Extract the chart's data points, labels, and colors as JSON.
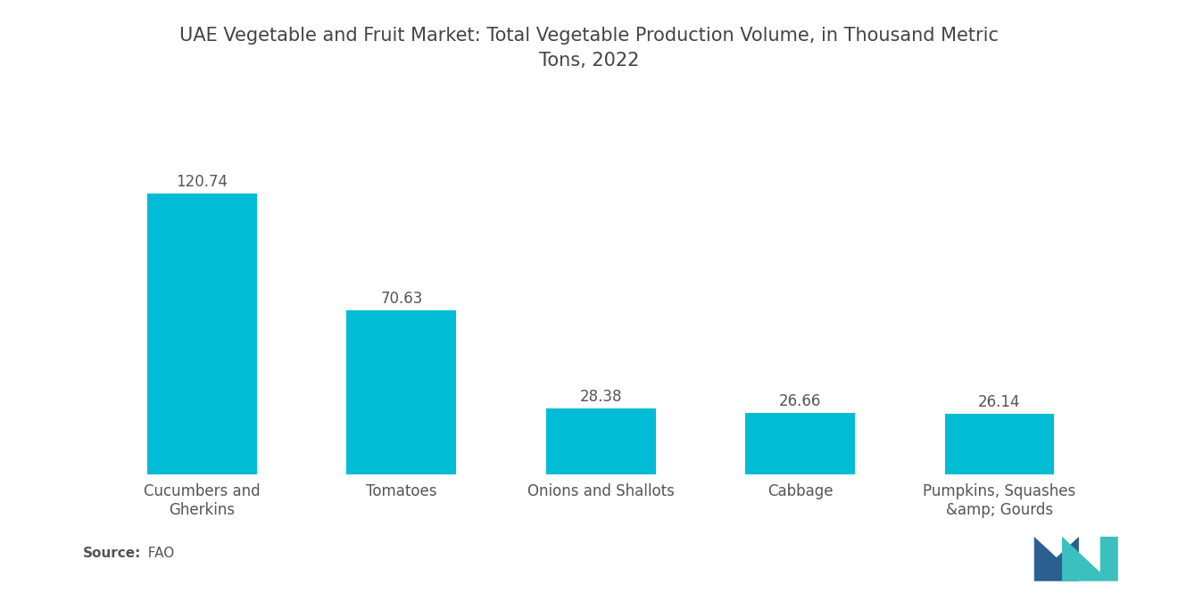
{
  "title": "UAE Vegetable and Fruit Market: Total Vegetable Production Volume, in Thousand Metric\nTons, 2022",
  "categories": [
    "Cucumbers and\nGherkins",
    "Tomatoes",
    "Onions and Shallots",
    "Cabbage",
    "Pumpkins, Squashes\n&amp; Gourds"
  ],
  "values": [
    120.74,
    70.63,
    28.38,
    26.66,
    26.14
  ],
  "bar_color": "#00BCD4",
  "background_color": "#ffffff",
  "title_fontsize": 15,
  "label_fontsize": 12,
  "value_fontsize": 12,
  "source_label": "Source:",
  "source_value": "  FAO",
  "ylim": [
    0,
    148
  ],
  "bar_width": 0.55
}
